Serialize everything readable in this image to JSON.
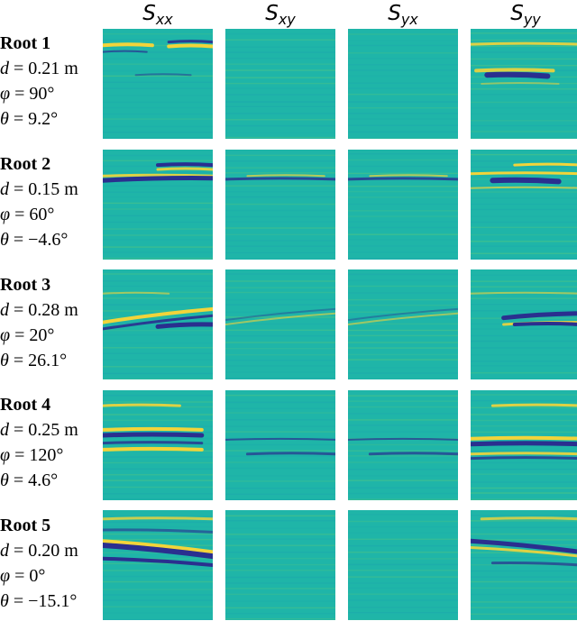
{
  "columns": [
    {
      "main": "S",
      "sub": "xx"
    },
    {
      "main": "S",
      "sub": "xy"
    },
    {
      "main": "S",
      "sub": "yx"
    },
    {
      "main": "S",
      "sub": "yy"
    }
  ],
  "roots": [
    {
      "title": "Root 1",
      "d_sym": "d",
      "d_val": " = 0.21 m",
      "phi_sym": "φ",
      "phi_val": " = 90°",
      "theta_sym": "θ",
      "theta_val": " = 9.2°"
    },
    {
      "title": "Root 2",
      "d_sym": "d",
      "d_val": " = 0.15 m",
      "phi_sym": "φ",
      "phi_val": " = 60°",
      "theta_sym": "θ",
      "theta_val": " = −4.6°"
    },
    {
      "title": "Root 3",
      "d_sym": "d",
      "d_val": " = 0.28 m",
      "phi_sym": "φ",
      "phi_val": " = 20°",
      "theta_sym": "θ",
      "theta_val": " = 26.1°"
    },
    {
      "title": "Root 4",
      "d_sym": "d",
      "d_val": " = 0.25 m",
      "phi_sym": "φ",
      "phi_val": " = 120°",
      "theta_sym": "θ",
      "theta_val": " = 4.6°"
    },
    {
      "title": "Root 5",
      "d_sym": "d",
      "d_val": " = 0.20 m",
      "phi_sym": "φ",
      "phi_val": " = 0°",
      "theta_sym": "θ",
      "theta_val": " = −15.1°"
    }
  ],
  "colors": {
    "background": "#1fb5a8",
    "positive": "#f2d43a",
    "negative": "#2a2f8f",
    "light_band": "#6fd06a"
  }
}
